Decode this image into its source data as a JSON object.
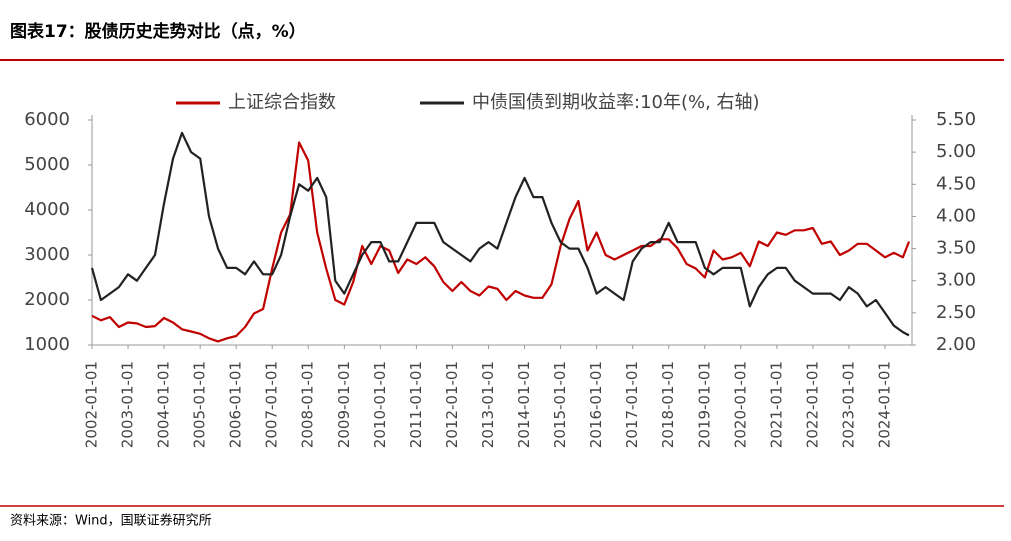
{
  "chart_data": {
    "type": "line",
    "title": "图表17：股债历史走势对比（点，%）",
    "source": "资料来源：Wind，国联证券研究所",
    "x": [
      "2002-01-01",
      "2002-04-01",
      "2002-07-01",
      "2002-10-01",
      "2003-01-01",
      "2003-04-01",
      "2003-07-01",
      "2003-10-01",
      "2004-01-01",
      "2004-04-01",
      "2004-07-01",
      "2004-10-01",
      "2005-01-01",
      "2005-04-01",
      "2005-07-01",
      "2005-10-01",
      "2006-01-01",
      "2006-04-01",
      "2006-07-01",
      "2006-10-01",
      "2007-01-01",
      "2007-04-01",
      "2007-07-01",
      "2007-10-01",
      "2008-01-01",
      "2008-04-01",
      "2008-07-01",
      "2008-10-01",
      "2009-01-01",
      "2009-04-01",
      "2009-07-01",
      "2009-10-01",
      "2010-01-01",
      "2010-04-01",
      "2010-07-01",
      "2010-10-01",
      "2011-01-01",
      "2011-04-01",
      "2011-07-01",
      "2011-10-01",
      "2012-01-01",
      "2012-04-01",
      "2012-07-01",
      "2012-10-01",
      "2013-01-01",
      "2013-04-01",
      "2013-07-01",
      "2013-10-01",
      "2014-01-01",
      "2014-04-01",
      "2014-07-01",
      "2014-10-01",
      "2015-01-01",
      "2015-04-01",
      "2015-07-01",
      "2015-10-01",
      "2016-01-01",
      "2016-04-01",
      "2016-07-01",
      "2016-10-01",
      "2017-01-01",
      "2017-04-01",
      "2017-07-01",
      "2017-10-01",
      "2018-01-01",
      "2018-04-01",
      "2018-07-01",
      "2018-10-01",
      "2019-01-01",
      "2019-04-01",
      "2019-07-01",
      "2019-10-01",
      "2020-01-01",
      "2020-04-01",
      "2020-07-01",
      "2020-10-01",
      "2021-01-01",
      "2021-04-01",
      "2021-07-01",
      "2021-10-01",
      "2022-01-01",
      "2022-04-01",
      "2022-07-01",
      "2022-10-01",
      "2023-01-01",
      "2023-04-01",
      "2023-07-01",
      "2023-10-01",
      "2024-01-01",
      "2024-04-01",
      "2024-07-01",
      "2024-09-01"
    ],
    "xlim": [
      "2002-01-01",
      "2024-10-01"
    ],
    "xticks": [
      "2002-01-01",
      "2003-01-01",
      "2004-01-01",
      "2005-01-01",
      "2006-01-01",
      "2007-01-01",
      "2008-01-01",
      "2009-01-01",
      "2010-01-01",
      "2011-01-01",
      "2012-01-01",
      "2013-01-01",
      "2014-01-01",
      "2015-01-01",
      "2016-01-01",
      "2017-01-01",
      "2018-01-01",
      "2019-01-01",
      "2020-01-01",
      "2021-01-01",
      "2022-01-01",
      "2023-01-01",
      "2024-01-01"
    ],
    "ylim": [
      1000,
      6000
    ],
    "yticks": [
      1000,
      2000,
      3000,
      4000,
      5000,
      6000
    ],
    "y2lim": [
      2,
      5.5
    ],
    "y2ticks": [
      {
        "value": 2,
        "label": "2.00"
      },
      {
        "value": 2.5,
        "label": "2.50"
      },
      {
        "value": 3,
        "label": "3.00"
      },
      {
        "value": 3.5,
        "label": "3.50"
      },
      {
        "value": 4,
        "label": "4.00"
      },
      {
        "value": 4.5,
        "label": "4.50"
      },
      {
        "value": 5,
        "label": "5.00"
      },
      {
        "value": 5.5,
        "label": "5.50"
      }
    ],
    "series": [
      {
        "name": "上证综合指数",
        "color": "#c00000",
        "values": [
          1650,
          1550,
          1620,
          1400,
          1500,
          1480,
          1400,
          1420,
          1600,
          1500,
          1350,
          1300,
          1250,
          1150,
          1080,
          1150,
          1200,
          1400,
          1700,
          1800,
          2700,
          3500,
          3900,
          5500,
          5100,
          3500,
          2700,
          2000,
          1900,
          2400,
          3200,
          2800,
          3200,
          3100,
          2600,
          2900,
          2800,
          2950,
          2750,
          2400,
          2200,
          2400,
          2200,
          2100,
          2300,
          2250,
          2000,
          2200,
          2100,
          2050,
          2050,
          2350,
          3200,
          3800,
          4200,
          3100,
          3500,
          3000,
          2900,
          3000,
          3100,
          3200,
          3200,
          3350,
          3350,
          3150,
          2800,
          2700,
          2500,
          3100,
          2900,
          2950,
          3050,
          2750,
          3300,
          3200,
          3500,
          3450,
          3550,
          3550,
          3600,
          3250,
          3300,
          3000,
          3100,
          3250,
          3250,
          3100,
          2950,
          3050,
          2950,
          3300
        ]
      },
      {
        "name": "中债国债到期收益率:10年(%, 右轴)",
        "color": "#222222",
        "axis": "y2",
        "values": [
          3.2,
          2.7,
          2.8,
          2.9,
          3.1,
          3.0,
          3.2,
          3.4,
          4.2,
          4.9,
          5.3,
          5.0,
          4.9,
          4.0,
          3.5,
          3.2,
          3.2,
          3.1,
          3.3,
          3.1,
          3.1,
          3.4,
          4.0,
          4.5,
          4.4,
          4.6,
          4.3,
          3.0,
          2.8,
          3.1,
          3.4,
          3.6,
          3.6,
          3.3,
          3.3,
          3.6,
          3.9,
          3.9,
          3.9,
          3.6,
          3.5,
          3.4,
          3.3,
          3.5,
          3.6,
          3.5,
          3.9,
          4.3,
          4.6,
          4.3,
          4.3,
          3.9,
          3.6,
          3.5,
          3.5,
          3.2,
          2.8,
          2.9,
          2.8,
          2.7,
          3.3,
          3.5,
          3.6,
          3.6,
          3.9,
          3.6,
          3.6,
          3.6,
          3.2,
          3.1,
          3.2,
          3.2,
          3.2,
          2.6,
          2.9,
          3.1,
          3.2,
          3.2,
          3.0,
          2.9,
          2.8,
          2.8,
          2.8,
          2.7,
          2.9,
          2.8,
          2.6,
          2.7,
          2.5,
          2.3,
          2.2,
          2.15
        ]
      }
    ]
  }
}
